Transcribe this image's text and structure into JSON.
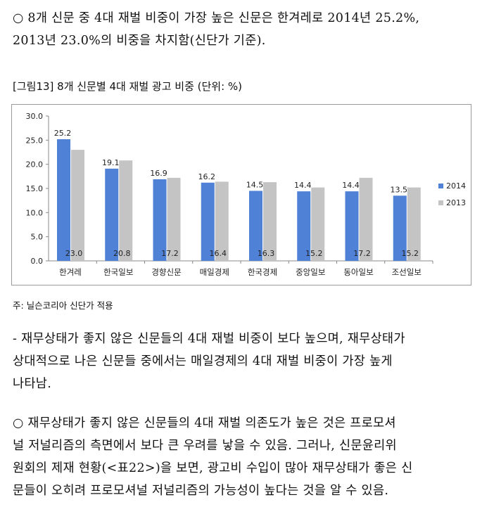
{
  "paragraph1": {
    "lines": [
      "○ 8개 신문 중 4대 재벌 비중이 가장 높은 신문은 한겨레로 2014년 25.2%,",
      "2013년 23.0%의 비중을 차지함(신단가 기준)."
    ]
  },
  "figure": {
    "caption": "[그림13] 8개 신문별 4대 재벌 광고 비중 (단위: %)"
  },
  "chart_data": {
    "type": "bar",
    "categories": [
      "한겨레",
      "한국일보",
      "경향신문",
      "매일경제",
      "한국경제",
      "중앙일보",
      "동아일보",
      "조선일보"
    ],
    "series": [
      {
        "name": "2014",
        "color": "#4f81d6",
        "values": [
          25.2,
          19.1,
          16.9,
          16.2,
          14.5,
          14.4,
          14.4,
          13.5
        ]
      },
      {
        "name": "2013",
        "color": "#c4c4c4",
        "values": [
          23.0,
          20.8,
          17.2,
          16.4,
          16.3,
          15.2,
          17.2,
          15.2
        ]
      }
    ],
    "y_ticks": [
      "0.0",
      "5.0",
      "10.0",
      "15.0",
      "20.0",
      "25.0",
      "30.0"
    ],
    "ylim": [
      0,
      30
    ],
    "legend": "right",
    "grid": false
  },
  "source_note": "주: 닐슨코리아 신단가 적용",
  "paragraph2": {
    "lines": [
      "- 재무상태가 좋지 않은 신문들의 4대 재벌 비중이 보다 높으며, 재무상태가",
      "상대적으로 나은 신문들 중에서는 매일경제의 4대 재벌 비중이 가장 높게",
      "나타남."
    ]
  },
  "paragraph3": {
    "lines": [
      "○ 재무상태가 좋지 않은 신문들의 4대 재벌 의존도가 높은 것은 프로모셔",
      "널 저널리즘의 측면에서 보다 큰 우려를 낳을 수 있음. 그러나, 신문윤리위",
      "원회의 제재 현황(<표22>)을 보면, 광고비 수입이 많아 재무상태가 좋은 신",
      "문들이 오히려 프로모셔널 저널리즘의 가능성이 높다는 것을 알 수 있음."
    ]
  }
}
